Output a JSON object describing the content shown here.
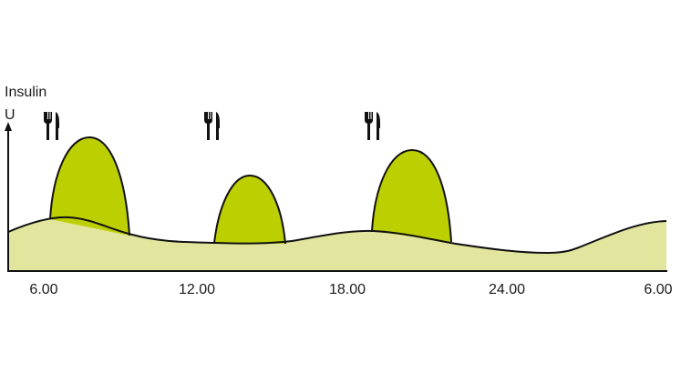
{
  "y_axis": {
    "label_line1": "Insulin",
    "label_line2": "U"
  },
  "x_ticks": [
    "6.00",
    "12.00",
    "18.00",
    "24.00",
    "6.00"
  ],
  "meals": [
    "meal-icon",
    "meal-icon",
    "meal-icon"
  ],
  "colors": {
    "basal": "#e1e59e",
    "bolus": "#bccf00",
    "outline": "#111111"
  }
}
